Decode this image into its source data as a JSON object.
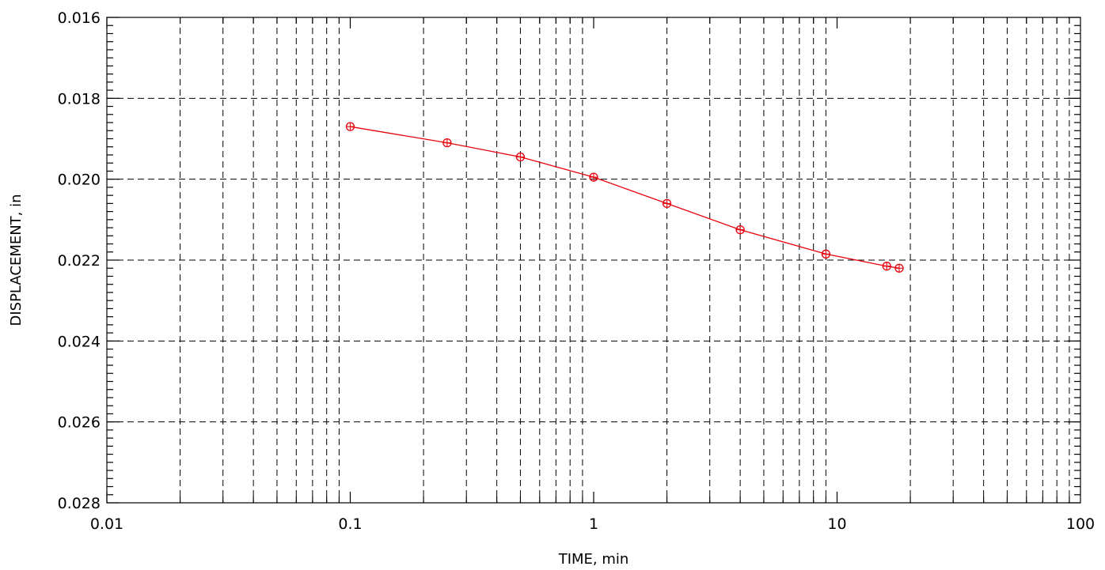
{
  "chart_data": {
    "type": "line",
    "title": "",
    "xlabel": "TIME, min",
    "ylabel": "DISPLACEMENT, in",
    "x_scale": "log",
    "xlim": [
      0.01,
      100
    ],
    "ylim": [
      0.028,
      0.016
    ],
    "y_inverted": true,
    "grid": true,
    "grid_style": "dashed",
    "x_ticks": [
      "0.01",
      "0.1",
      "1",
      "10",
      "100"
    ],
    "y_ticks": [
      "0.016",
      "0.018",
      "0.020",
      "0.022",
      "0.024",
      "0.026",
      "0.028"
    ],
    "series": [
      {
        "color": "#e8000b",
        "marker": "circle-plus",
        "x": [
          0.1,
          0.25,
          0.5,
          1,
          2,
          4,
          9,
          16,
          18
        ],
        "y": [
          0.0187,
          0.0191,
          0.01945,
          0.01995,
          0.0206,
          0.02125,
          0.02185,
          0.02215,
          0.0222
        ]
      }
    ]
  }
}
